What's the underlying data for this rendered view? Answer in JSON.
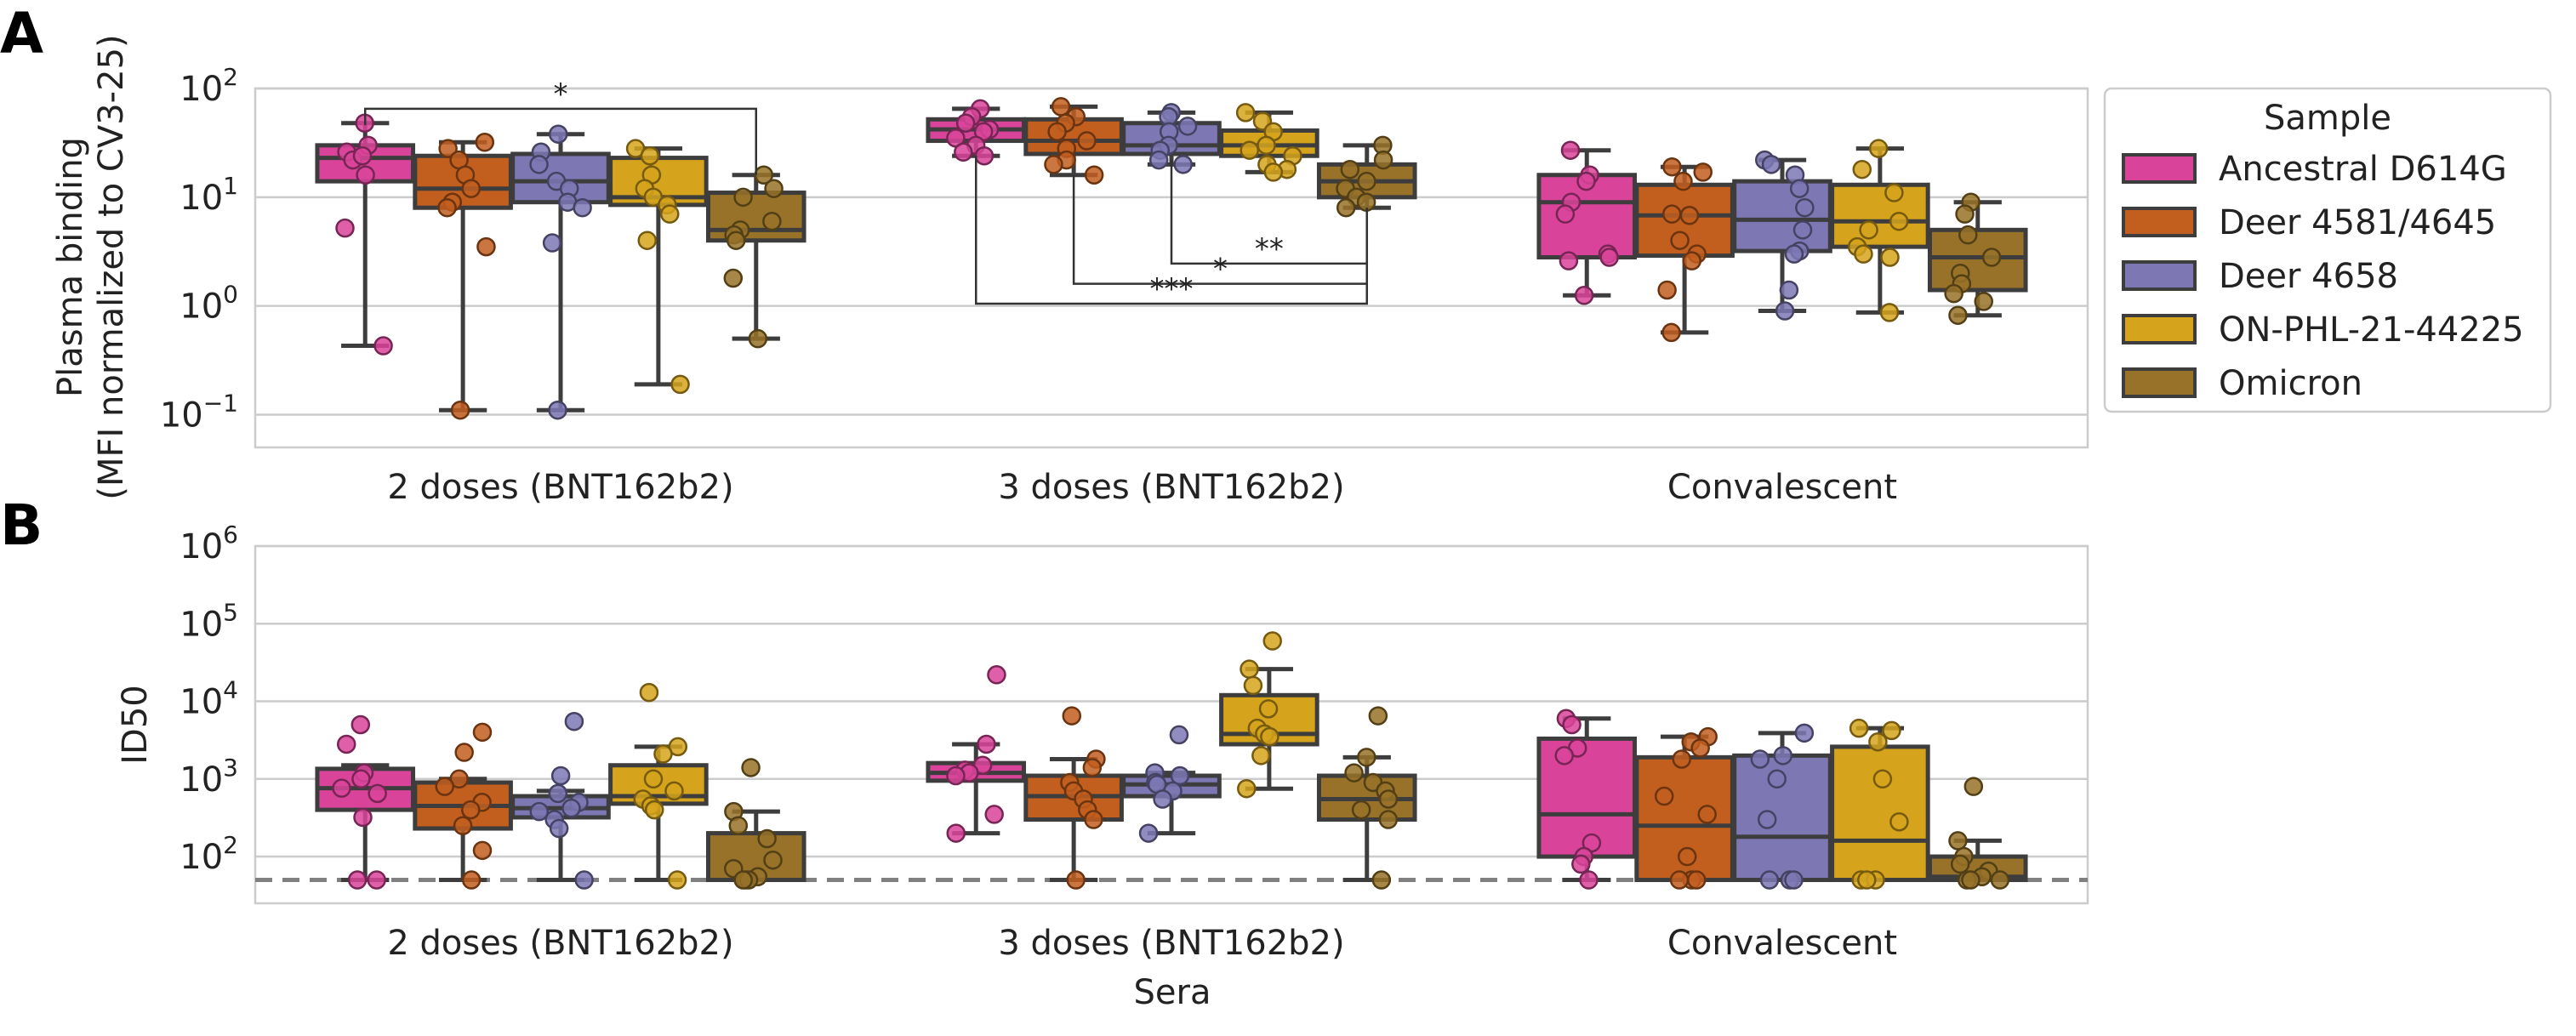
{
  "figure": {
    "panel_labels": [
      "A",
      "B"
    ]
  },
  "legend": {
    "title": "Sample",
    "entries": [
      {
        "label": "Ancestral D614G",
        "color": "#d9449a"
      },
      {
        "label": "Deer 4581/4645",
        "color": "#c25e1e"
      },
      {
        "label": "Deer 4658",
        "color": "#7d78b4"
      },
      {
        "label": "ON-PHL-21-44225",
        "color": "#d6a41c"
      },
      {
        "label": "Omicron",
        "color": "#977228"
      }
    ]
  },
  "chart_data": [
    {
      "panel": "A",
      "type": "box",
      "ylabel_lines": [
        "Plasma binding",
        "(MFI normalized to CV3-25)"
      ],
      "xlabel": "",
      "yscale": "log",
      "ylim": [
        0.05,
        100
      ],
      "yticks": [
        {
          "base": "10",
          "exp": "2",
          "value": 100
        },
        {
          "base": "10",
          "exp": "1",
          "value": 10
        },
        {
          "base": "10",
          "exp": "0",
          "value": 1
        },
        {
          "base": "10",
          "exp": "−1",
          "value": 0.1
        }
      ],
      "grid": true,
      "categories": [
        "2 doses (BNT162b2)",
        "3 doses (BNT162b2)",
        "Convalescent"
      ],
      "series": [
        {
          "name": "Ancestral D614G",
          "boxes": [
            {
              "q1": 14,
              "median": 23,
              "q3": 30,
              "wlo": 0.43,
              "whi": 48,
              "points": [
                48,
                30,
                26,
                22,
                24,
                16,
                5.2,
                0.43
              ]
            },
            {
              "q1": 33,
              "median": 42,
              "q3": 52,
              "wlo": 24,
              "whi": 65,
              "points": [
                65,
                55,
                48,
                42,
                40,
                35,
                30,
                26,
                24
              ]
            },
            {
              "q1": 2.8,
              "median": 9,
              "q3": 16,
              "wlo": 1.25,
              "whi": 27,
              "points": [
                27,
                16,
                14,
                9,
                7,
                3,
                2.8,
                2.6,
                1.25
              ]
            }
          ]
        },
        {
          "name": "Deer 4581/4645",
          "boxes": [
            {
              "q1": 8,
              "median": 12,
              "q3": 24,
              "wlo": 0.11,
              "whi": 32,
              "points": [
                32,
                28,
                22,
                16,
                12,
                9,
                8,
                3.5,
                0.11
              ]
            },
            {
              "q1": 25,
              "median": 33,
              "q3": 52,
              "wlo": 16,
              "whi": 68,
              "points": [
                68,
                55,
                48,
                40,
                33,
                28,
                22,
                20,
                16
              ]
            },
            {
              "q1": 2.9,
              "median": 6.8,
              "q3": 13,
              "wlo": 0.57,
              "whi": 19,
              "points": [
                19,
                17,
                14,
                7,
                6.8,
                4,
                3,
                2.6,
                1.4,
                0.57
              ]
            }
          ]
        },
        {
          "name": "Deer 4658",
          "boxes": [
            {
              "q1": 9,
              "median": 14,
              "q3": 25,
              "wlo": 0.11,
              "whi": 38,
              "points": [
                38,
                26,
                20,
                14,
                12,
                9,
                8,
                3.8,
                0.11
              ]
            },
            {
              "q1": 25,
              "median": 30,
              "q3": 48,
              "wlo": 20,
              "whi": 60,
              "points": [
                60,
                55,
                45,
                40,
                30,
                27,
                22,
                20
              ]
            },
            {
              "q1": 3.2,
              "median": 6.2,
              "q3": 14,
              "wlo": 0.9,
              "whi": 22,
              "points": [
                22,
                20,
                16,
                12,
                8,
                5,
                3.2,
                3,
                1.4,
                0.9
              ]
            }
          ]
        },
        {
          "name": "ON-PHL-21-44225",
          "boxes": [
            {
              "q1": 8.5,
              "median": 10,
              "q3": 23,
              "wlo": 0.19,
              "whi": 28,
              "points": [
                28,
                24,
                16,
                12,
                10,
                8.5,
                7,
                4,
                0.19
              ]
            },
            {
              "q1": 24,
              "median": 30,
              "q3": 41,
              "wlo": 17,
              "whi": 60,
              "points": [
                60,
                50,
                40,
                30,
                27,
                24,
                20,
                18,
                17
              ]
            },
            {
              "q1": 3.5,
              "median": 6,
              "q3": 13,
              "wlo": 0.87,
              "whi": 28,
              "points": [
                28,
                18,
                11,
                6,
                5,
                3.5,
                3,
                2.8,
                0.87
              ]
            }
          ]
        },
        {
          "name": "Omicron",
          "boxes": [
            {
              "q1": 4,
              "median": 5,
              "q3": 11,
              "wlo": 0.5,
              "whi": 16,
              "points": [
                16,
                12,
                10,
                6,
                5,
                4.5,
                4,
                1.8,
                0.5
              ]
            },
            {
              "q1": 10,
              "median": 14,
              "q3": 20,
              "wlo": 8,
              "whi": 30,
              "points": [
                30,
                22,
                18,
                14,
                12,
                10,
                9,
                8
              ]
            },
            {
              "q1": 1.4,
              "median": 2.8,
              "q3": 5,
              "wlo": 0.82,
              "whi": 9,
              "points": [
                9,
                7,
                4.5,
                2.8,
                2,
                1.6,
                1.3,
                1.1,
                0.82
              ]
            }
          ]
        }
      ],
      "significance": [
        {
          "label": "*",
          "group": 0,
          "a": 0,
          "b": 4,
          "y_value": 65,
          "drop_a": 46,
          "drop_b": 16
        },
        {
          "label": "**",
          "group": 1,
          "a": 2,
          "b": 4,
          "y_value": 2.45,
          "drop_a": 22,
          "drop_b": 8
        },
        {
          "label": "*",
          "group": 1,
          "a": 1,
          "b": 4,
          "y_value": 1.6,
          "drop_a": 16,
          "drop_b": 8
        },
        {
          "label": "***",
          "group": 1,
          "a": 0,
          "b": 4,
          "y_value": 1.05,
          "drop_a": 24,
          "drop_b": 8
        }
      ]
    },
    {
      "panel": "B",
      "type": "box",
      "ylabel_lines": [
        "ID50"
      ],
      "xlabel": "Sera",
      "yscale": "log",
      "ylim": [
        25,
        1000000
      ],
      "yticks": [
        {
          "base": "10",
          "exp": "6",
          "value": 1000000
        },
        {
          "base": "10",
          "exp": "5",
          "value": 100000
        },
        {
          "base": "10",
          "exp": "4",
          "value": 10000
        },
        {
          "base": "10",
          "exp": "3",
          "value": 1000
        },
        {
          "base": "10",
          "exp": "2",
          "value": 100
        }
      ],
      "grid": true,
      "threshold": 50,
      "categories": [
        "2 doses (BNT162b2)",
        "3 doses (BNT162b2)",
        "Convalescent"
      ],
      "series": [
        {
          "name": "Ancestral D614G",
          "boxes": [
            {
              "q1": 400,
              "median": 760,
              "q3": 1350,
              "wlo": 50,
              "whi": 1500,
              "points": [
                5000,
                2800,
                1200,
                1000,
                760,
                650,
                320,
                50,
                50
              ]
            },
            {
              "q1": 950,
              "median": 1200,
              "q3": 1600,
              "wlo": 200,
              "whi": 2800,
              "points": [
                22000,
                2800,
                1500,
                1300,
                1200,
                1100,
                350,
                200
              ]
            },
            {
              "q1": 100,
              "median": 350,
              "q3": 3300,
              "wlo": 50,
              "whi": 6000,
              "points": [
                6000,
                5000,
                2500,
                2000,
                150,
                100,
                80,
                50
              ]
            }
          ]
        },
        {
          "name": "Deer 4581/4645",
          "boxes": [
            {
              "q1": 230,
              "median": 450,
              "q3": 900,
              "wlo": 50,
              "whi": 1000,
              "points": [
                4000,
                2200,
                1000,
                800,
                500,
                400,
                250,
                120,
                50
              ]
            },
            {
              "q1": 300,
              "median": 600,
              "q3": 1100,
              "wlo": 50,
              "whi": 1800,
              "points": [
                6500,
                1800,
                1400,
                900,
                700,
                550,
                400,
                300,
                50
              ]
            },
            {
              "q1": 50,
              "median": 250,
              "q3": 1900,
              "wlo": 50,
              "whi": 3500,
              "points": [
                3500,
                3000,
                2500,
                1800,
                600,
                350,
                100,
                50,
                50,
                50
              ]
            }
          ]
        },
        {
          "name": "Deer 4658",
          "boxes": [
            {
              "q1": 320,
              "median": 420,
              "q3": 600,
              "wlo": 50,
              "whi": 700,
              "points": [
                5500,
                1100,
                650,
                500,
                420,
                380,
                300,
                230,
                50
              ]
            },
            {
              "q1": 600,
              "median": 850,
              "q3": 1100,
              "wlo": 200,
              "whi": 1200,
              "points": [
                3700,
                1200,
                1100,
                900,
                850,
                700,
                550,
                200
              ]
            },
            {
              "q1": 50,
              "median": 180,
              "q3": 2000,
              "wlo": 50,
              "whi": 3900,
              "points": [
                3900,
                2000,
                1800,
                1000,
                300,
                50,
                50,
                50
              ]
            }
          ]
        },
        {
          "name": "ON-PHL-21-44225",
          "boxes": [
            {
              "q1": 480,
              "median": 600,
              "q3": 1500,
              "wlo": 50,
              "whi": 2600,
              "points": [
                13000,
                2600,
                2100,
                1000,
                700,
                550,
                450,
                400,
                50
              ]
            },
            {
              "q1": 2800,
              "median": 3800,
              "q3": 12000,
              "wlo": 750,
              "whi": 26000,
              "points": [
                60000,
                26000,
                16000,
                8000,
                4500,
                3800,
                3500,
                2000,
                750
              ]
            },
            {
              "q1": 50,
              "median": 160,
              "q3": 2600,
              "wlo": 50,
              "whi": 4500,
              "points": [
                4500,
                4200,
                3000,
                1000,
                280,
                50,
                50,
                50
              ]
            }
          ]
        },
        {
          "name": "Omicron",
          "boxes": [
            {
              "q1": 50,
              "median": 50,
              "q3": 200,
              "wlo": 50,
              "whi": 380,
              "points": [
                1400,
                380,
                250,
                170,
                90,
                70,
                55,
                50,
                50,
                50
              ]
            },
            {
              "q1": 300,
              "median": 550,
              "q3": 1100,
              "wlo": 50,
              "whi": 1900,
              "points": [
                6500,
                1900,
                1200,
                900,
                700,
                550,
                400,
                300,
                50
              ]
            },
            {
              "q1": 50,
              "median": 55,
              "q3": 100,
              "wlo": 50,
              "whi": 160,
              "points": [
                800,
                160,
                100,
                80,
                65,
                55,
                50,
                50,
                50
              ]
            }
          ]
        }
      ]
    }
  ]
}
